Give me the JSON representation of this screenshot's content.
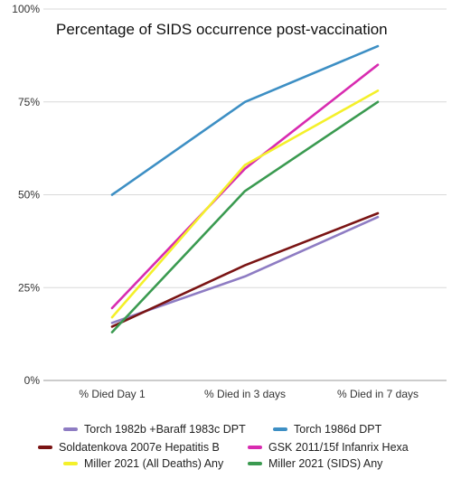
{
  "chart_data": {
    "type": "line",
    "title": "Percentage of SIDS occurrence post-vaccination",
    "categories": [
      "% Died Day 1",
      "% Died in 3 days",
      "% Died in 7 days"
    ],
    "y_ticks": [
      "0%",
      "25%",
      "50%",
      "75%",
      "100%"
    ],
    "ylim": [
      0,
      100
    ],
    "grid": true,
    "legend_position": "bottom",
    "series": [
      {
        "name": "Torch 1982b +Baraff 1983c DPT",
        "color": "#8e7cc3",
        "values": [
          15.5,
          28,
          44
        ]
      },
      {
        "name": "Torch 1986d DPT",
        "color": "#3d8fc4",
        "values": [
          50,
          75,
          90
        ]
      },
      {
        "name": "Soldatenkova 2007e Hepatitis B",
        "color": "#7a1414",
        "values": [
          14.5,
          31,
          45
        ]
      },
      {
        "name": "GSK 2011/15f Infanrix Hexa",
        "color": "#d82bb0",
        "values": [
          19.5,
          57,
          85
        ]
      },
      {
        "name": "Miller 2021 (All Deaths) Any",
        "color": "#f4f02a",
        "values": [
          17,
          58,
          78
        ]
      },
      {
        "name": "Miller 2021 (SIDS) Any",
        "color": "#3a9a50",
        "values": [
          13,
          51,
          75
        ]
      }
    ]
  }
}
